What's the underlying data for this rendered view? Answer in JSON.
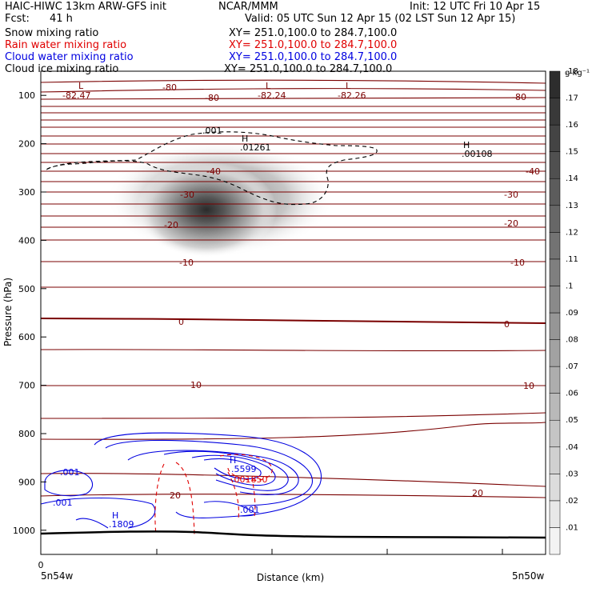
{
  "header": {
    "model": "HAIC-HIWC 13km ARW-GFS init",
    "org": "NCAR/MMM",
    "init": "Init: 12 UTC Fri 10 Apr 15",
    "fcst_label": "Fcst:",
    "fcst_value": "41 h",
    "valid": "Valid: 05 UTC Sun 12 Apr 15 (02 LST Sun 12 Apr 15)",
    "fields": [
      {
        "name": "Snow mixing ratio",
        "xy": "XY= 251.0,100.0 to 284.7,100.0",
        "color": "#000000"
      },
      {
        "name": "Rain water mixing ratio",
        "xy": "XY= 251.0,100.0 to 284.7,100.0",
        "color": "#e00000"
      },
      {
        "name": "Cloud water mixing ratio",
        "xy": "XY= 251.0,100.0 to 284.7,100.0",
        "color": "#0000e0"
      },
      {
        "name": "Cloud ice mixing ratio",
        "xy": "XY= 251.0,100.0 to 284.7,100.0",
        "color": "#000000"
      }
    ]
  },
  "chart_data": {
    "type": "heatmap",
    "xlabel": "Distance (km)",
    "ylabel": "Pressure (hPa)",
    "x_ticks": [
      "0"
    ],
    "x_endpoint_labels": [
      "5n54w",
      "5n50w"
    ],
    "y_ticks": [
      100,
      200,
      300,
      400,
      500,
      600,
      700,
      800,
      900,
      1000
    ],
    "ylim": [
      1050,
      50
    ],
    "colorbar": {
      "unit": "g kg⁻¹",
      "ticks": [
        ".01",
        ".02",
        ".03",
        ".04",
        ".05",
        ".06",
        ".07",
        ".08",
        ".09",
        ".1",
        ".11",
        ".12",
        ".13",
        ".14",
        ".15",
        ".16",
        ".17",
        ".18"
      ]
    },
    "shading_max": {
      "p": 345,
      "value": 0.18
    },
    "temperature_contour_labels": [
      {
        "text": "-80",
        "p": 105
      },
      {
        "text": "-80",
        "p": 116
      },
      {
        "text": "-80",
        "p": 116
      },
      {
        "text": "-40",
        "p": 232
      },
      {
        "text": "-40",
        "p": 232
      },
      {
        "text": "-30",
        "p": 290
      },
      {
        "text": "-30",
        "p": 290
      },
      {
        "text": "-20",
        "p": 363
      },
      {
        "text": "-20",
        "p": 363
      },
      {
        "text": "-10",
        "p": 458
      },
      {
        "text": "-10",
        "p": 458
      },
      {
        "text": "0",
        "p": 573
      },
      {
        "text": "0",
        "p": 578
      },
      {
        "text": "10",
        "p": 697
      },
      {
        "text": "10",
        "p": 697
      },
      {
        "text": "20",
        "p": 927
      },
      {
        "text": "20",
        "p": 909
      }
    ],
    "extrema": [
      {
        "kind": "L",
        "value": "-82.47",
        "color": "#7a0000"
      },
      {
        "kind": "L",
        "value": "-82.24",
        "color": "#7a0000"
      },
      {
        "kind": "L",
        "value": "-82.26",
        "color": "#7a0000"
      },
      {
        "kind": "H",
        "value": ".01261",
        "color": "#000000"
      },
      {
        "kind": "H",
        "value": ".00108",
        "color": "#000000"
      },
      {
        "kind": "H",
        "value": ".5599",
        "color": "#0000e0"
      },
      {
        "kind": "H",
        "value": ".1809",
        "color": "#0000e0"
      }
    ],
    "contour_labels": [
      {
        "text": ".001",
        "color": "#000000"
      },
      {
        "text": ".001",
        "color": "#0000e0"
      },
      {
        "text": ".001",
        "color": "#0000e0"
      },
      {
        "text": ".001",
        "color": "#0000e0"
      },
      {
        "text": ".001850",
        "color": "#e00000"
      }
    ]
  }
}
